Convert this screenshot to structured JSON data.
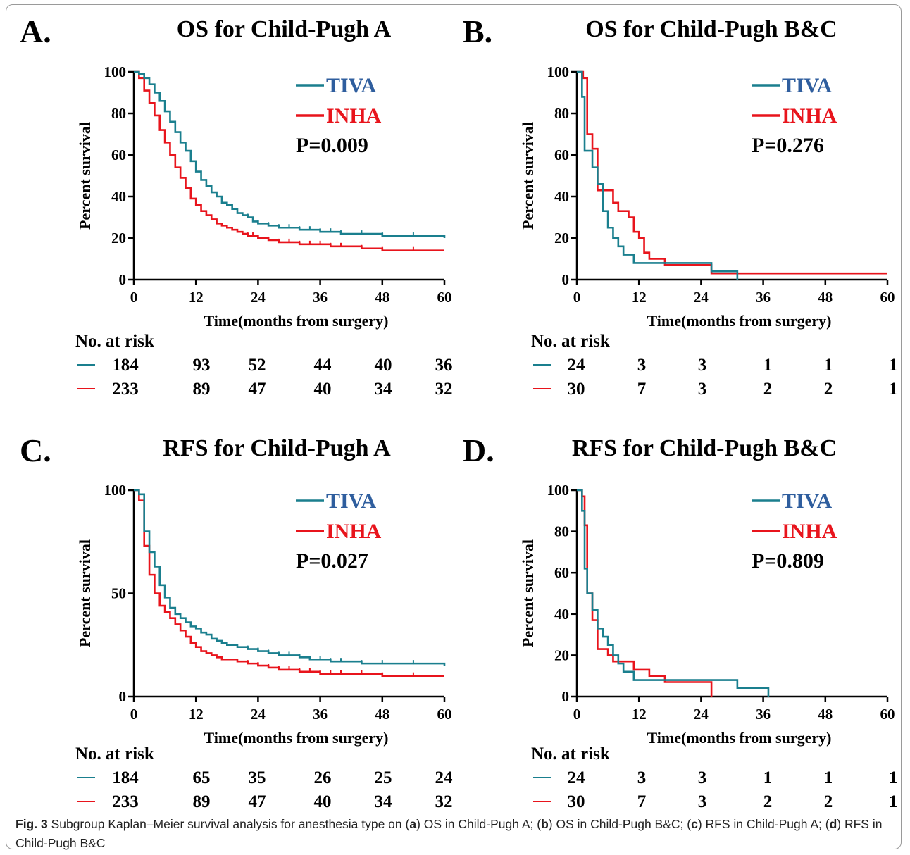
{
  "panels": [
    {
      "id": "A",
      "letter": "A.",
      "title": "OS for Child-Pugh A",
      "p_value": "P=0.009",
      "yticks": [
        "0",
        "20",
        "40",
        "60",
        "80",
        "100"
      ],
      "xticks": [
        "0",
        "12",
        "24",
        "36",
        "48",
        "60"
      ],
      "risk": {
        "label": "No. at risk",
        "tiva": [
          "184",
          "93",
          "52",
          "44",
          "40",
          "36"
        ],
        "inha": [
          "233",
          "89",
          "47",
          "40",
          "34",
          "32"
        ]
      }
    },
    {
      "id": "B",
      "letter": "B.",
      "title": "OS for Child-Pugh B&C",
      "p_value": "P=0.276",
      "yticks": [
        "0",
        "20",
        "40",
        "60",
        "80",
        "100"
      ],
      "xticks": [
        "0",
        "12",
        "24",
        "36",
        "48",
        "60"
      ],
      "risk": {
        "label": "No. at risk",
        "tiva": [
          "24",
          "3",
          "3",
          "1",
          "1",
          "1"
        ],
        "inha": [
          "30",
          "7",
          "3",
          "2",
          "2",
          "1"
        ]
      }
    },
    {
      "id": "C",
      "letter": "C.",
      "title": "RFS for Child-Pugh A",
      "p_value": "P=0.027",
      "yticks": [
        "0",
        "50",
        "100"
      ],
      "xticks": [
        "0",
        "12",
        "24",
        "36",
        "48",
        "60"
      ],
      "risk": {
        "label": "No. at risk",
        "tiva": [
          "184",
          "65",
          "35",
          "26",
          "25",
          "24"
        ],
        "inha": [
          "233",
          "89",
          "47",
          "40",
          "34",
          "32"
        ]
      }
    },
    {
      "id": "D",
      "letter": "D.",
      "title": "RFS for Child-Pugh B&C",
      "p_value": "P=0.809",
      "yticks": [
        "0",
        "20",
        "40",
        "60",
        "80",
        "100"
      ],
      "xticks": [
        "0",
        "12",
        "24",
        "36",
        "48",
        "60"
      ],
      "risk": {
        "label": "No. at risk",
        "tiva": [
          "24",
          "3",
          "3",
          "1",
          "1",
          "1"
        ],
        "inha": [
          "30",
          "7",
          "3",
          "2",
          "2",
          "1"
        ]
      }
    }
  ],
  "xlabel": "Time(months from surgery)",
  "ylabel": "Percent survival",
  "legend": {
    "tiva": "TIVA",
    "inha": "INHA"
  },
  "colors": {
    "tiva": "#1a7f8e",
    "inha": "#e8141c",
    "tiva_text": "#2f5e9e",
    "inha_text": "#e8141c"
  },
  "caption": {
    "fig_label": "Fig. 3",
    "text_parts": [
      " Subgroup Kaplan–Meier survival analysis for anesthesia type on (",
      "a",
      ") OS in Child-Pugh A; (",
      "b",
      ") OS in Child-Pugh B&C; (",
      "c",
      ") RFS in Child-Pugh A; (",
      "d",
      ") RFS in Child-Pugh B&C"
    ]
  },
  "chart_data": [
    {
      "type": "line",
      "title": "OS for Child-Pugh A",
      "xlabel": "Time(months from surgery)",
      "ylabel": "Percent survival",
      "xlim": [
        0,
        60
      ],
      "ylim": [
        0,
        100
      ],
      "legend_position": "top-right",
      "series": [
        {
          "name": "TIVA",
          "x": [
            0,
            1,
            2,
            3,
            4,
            5,
            6,
            7,
            8,
            9,
            10,
            11,
            12,
            13,
            14,
            15,
            16,
            17,
            18,
            19,
            20,
            21,
            22,
            23,
            24,
            26,
            28,
            30,
            32,
            34,
            36,
            38,
            40,
            44,
            48,
            54,
            60
          ],
          "y": [
            100,
            99,
            97,
            94,
            90,
            86,
            81,
            76,
            71,
            66,
            62,
            57,
            52,
            48,
            45,
            42,
            40,
            37,
            36,
            34,
            32,
            31,
            30,
            28,
            27,
            26,
            25,
            25,
            24,
            24,
            23,
            23,
            22,
            22,
            21,
            21,
            20
          ]
        },
        {
          "name": "INHA",
          "x": [
            0,
            1,
            2,
            3,
            4,
            5,
            6,
            7,
            8,
            9,
            10,
            11,
            12,
            13,
            14,
            15,
            16,
            17,
            18,
            19,
            20,
            21,
            22,
            23,
            24,
            26,
            28,
            30,
            32,
            34,
            36,
            38,
            40,
            44,
            48,
            54,
            60
          ],
          "y": [
            100,
            97,
            91,
            85,
            79,
            72,
            66,
            60,
            54,
            49,
            44,
            39,
            36,
            33,
            31,
            29,
            27,
            26,
            25,
            24,
            23,
            22,
            21,
            21,
            20,
            19,
            18,
            18,
            17,
            17,
            17,
            16,
            16,
            15,
            14,
            14,
            14
          ]
        }
      ]
    },
    {
      "type": "line",
      "title": "OS for Child-Pugh B&C",
      "xlabel": "Time(months from surgery)",
      "ylabel": "Percent survival",
      "xlim": [
        0,
        60
      ],
      "ylim": [
        0,
        100
      ],
      "legend_position": "top-right",
      "series": [
        {
          "name": "TIVA",
          "x": [
            0,
            1,
            1.5,
            2,
            3,
            4,
            5,
            6,
            7,
            8,
            9,
            10,
            11,
            14,
            17,
            26,
            31,
            31
          ],
          "y": [
            100,
            88,
            62,
            62,
            54,
            46,
            33,
            25,
            20,
            16,
            12,
            12,
            8,
            8,
            8,
            4,
            4,
            0
          ]
        },
        {
          "name": "INHA",
          "x": [
            0,
            1.2,
            2,
            3,
            4,
            5,
            6,
            7,
            8,
            9,
            10,
            11,
            12,
            13,
            14,
            17,
            26,
            60
          ],
          "y": [
            100,
            97,
            70,
            63,
            43,
            43,
            43,
            37,
            33,
            33,
            30,
            23,
            20,
            13,
            10,
            7,
            3,
            3
          ]
        }
      ]
    },
    {
      "type": "line",
      "title": "RFS for Child-Pugh A",
      "xlabel": "Time(months from surgery)",
      "ylabel": "Percent survival",
      "xlim": [
        0,
        60
      ],
      "ylim": [
        0,
        100
      ],
      "legend_position": "top-right",
      "series": [
        {
          "name": "TIVA",
          "x": [
            0,
            1,
            2,
            3,
            4,
            5,
            6,
            7,
            8,
            9,
            10,
            11,
            12,
            13,
            14,
            15,
            16,
            17,
            18,
            20,
            22,
            24,
            26,
            28,
            30,
            32,
            34,
            36,
            38,
            40,
            44,
            48,
            54,
            60
          ],
          "y": [
            100,
            98,
            80,
            70,
            63,
            54,
            48,
            43,
            40,
            38,
            36,
            34,
            33,
            31,
            30,
            28,
            27,
            26,
            25,
            24,
            23,
            22,
            21,
            20,
            20,
            19,
            18,
            18,
            17,
            17,
            16,
            16,
            16,
            15
          ]
        },
        {
          "name": "INHA",
          "x": [
            0,
            1,
            2,
            3,
            4,
            5,
            6,
            7,
            8,
            9,
            10,
            11,
            12,
            13,
            14,
            15,
            16,
            17,
            18,
            20,
            22,
            24,
            26,
            28,
            30,
            32,
            34,
            36,
            38,
            40,
            44,
            48,
            54,
            60
          ],
          "y": [
            100,
            95,
            73,
            59,
            50,
            44,
            41,
            38,
            35,
            32,
            29,
            26,
            24,
            22,
            21,
            20,
            19,
            18,
            18,
            17,
            16,
            15,
            14,
            13,
            13,
            12,
            12,
            11,
            11,
            11,
            11,
            10,
            10,
            10
          ]
        }
      ]
    },
    {
      "type": "line",
      "title": "RFS for Child-Pugh B&C",
      "xlabel": "Time(months from surgery)",
      "ylabel": "Percent survival",
      "xlim": [
        0,
        60
      ],
      "ylim": [
        0,
        100
      ],
      "legend_position": "top-right",
      "series": [
        {
          "name": "TIVA",
          "x": [
            0,
            0.5,
            1,
            1.5,
            2,
            3,
            4,
            5,
            6,
            7,
            8,
            9,
            10,
            11,
            14,
            17,
            26,
            31,
            37,
            37
          ],
          "y": [
            100,
            100,
            90,
            62,
            50,
            42,
            33,
            29,
            25,
            20,
            16,
            12,
            12,
            8,
            8,
            8,
            8,
            4,
            4,
            0
          ]
        },
        {
          "name": "INHA",
          "x": [
            0,
            0.5,
            1,
            1.5,
            2,
            3,
            4,
            5,
            6,
            7,
            8,
            9,
            10,
            11,
            12,
            14,
            17,
            24,
            26,
            26
          ],
          "y": [
            100,
            100,
            97,
            83,
            50,
            37,
            23,
            23,
            20,
            17,
            17,
            17,
            17,
            13,
            13,
            10,
            7,
            7,
            3,
            0
          ]
        }
      ]
    }
  ]
}
